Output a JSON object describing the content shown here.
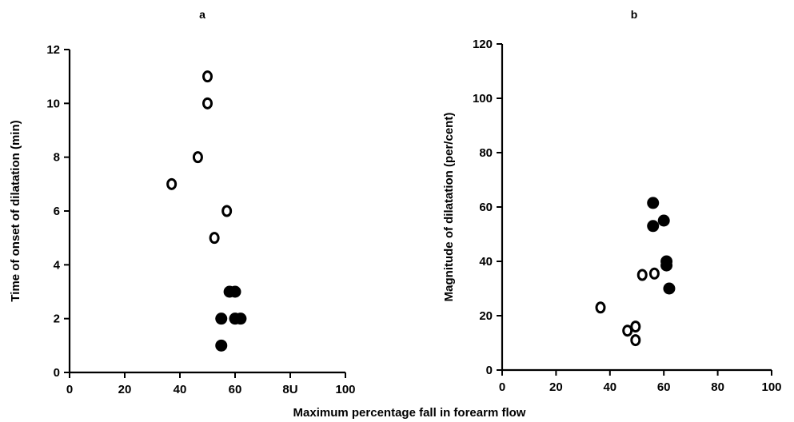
{
  "shared_xlabel": "Maximum percentage fall in forearm flow",
  "chart_data": [
    {
      "type": "scatter",
      "panel_label": "a",
      "title": "",
      "xlabel": "Maximum percentage fall in forearm flow",
      "ylabel": "Time of onset of dilatation (min)",
      "xlim": [
        0,
        100
      ],
      "ylim": [
        0,
        12
      ],
      "x_ticks": [
        "0",
        "20",
        "40",
        "60",
        "8U",
        "100"
      ],
      "x_tick_values": [
        0,
        20,
        40,
        60,
        80,
        100
      ],
      "y_ticks": [
        "0",
        "2",
        "4",
        "6",
        "8",
        "10",
        "12"
      ],
      "y_tick_values": [
        0,
        2,
        4,
        6,
        8,
        10,
        12
      ],
      "grid": false,
      "series": [
        {
          "marker": "open-circle",
          "color": "#000000",
          "points": [
            [
              50,
              11
            ],
            [
              50,
              10
            ],
            [
              46.5,
              8
            ],
            [
              37,
              7
            ],
            [
              57,
              6
            ],
            [
              52.5,
              5
            ]
          ]
        },
        {
          "marker": "filled-circle",
          "color": "#000000",
          "points": [
            [
              58,
              3
            ],
            [
              60,
              3
            ],
            [
              55,
              2
            ],
            [
              60,
              2
            ],
            [
              62,
              2
            ],
            [
              55,
              1
            ]
          ]
        }
      ]
    },
    {
      "type": "scatter",
      "panel_label": "b",
      "title": "",
      "xlabel": "Maximum percentage fall in forearm flow",
      "ylabel": "Magnitude of dilatation (per/cent)",
      "xlim": [
        0,
        100
      ],
      "ylim": [
        0,
        120
      ],
      "x_ticks": [
        "0",
        "20",
        "40",
        "60",
        "80",
        "100"
      ],
      "x_tick_values": [
        0,
        20,
        40,
        60,
        80,
        100
      ],
      "y_ticks": [
        "0",
        "20",
        "40",
        "60",
        "80",
        "100",
        "120"
      ],
      "y_tick_values": [
        0,
        20,
        40,
        60,
        80,
        100,
        120
      ],
      "grid": false,
      "series": [
        {
          "marker": "open-circle",
          "color": "#000000",
          "points": [
            [
              36.5,
              23
            ],
            [
              46.5,
              14.5
            ],
            [
              49.5,
              16
            ],
            [
              49.5,
              11
            ],
            [
              52,
              35
            ],
            [
              56.5,
              35.5
            ]
          ]
        },
        {
          "marker": "filled-circle",
          "color": "#000000",
          "points": [
            [
              56,
              61.5
            ],
            [
              56,
              53
            ],
            [
              60,
              55
            ],
            [
              61,
              40
            ],
            [
              61,
              38.5
            ],
            [
              62,
              30
            ]
          ]
        }
      ]
    }
  ]
}
